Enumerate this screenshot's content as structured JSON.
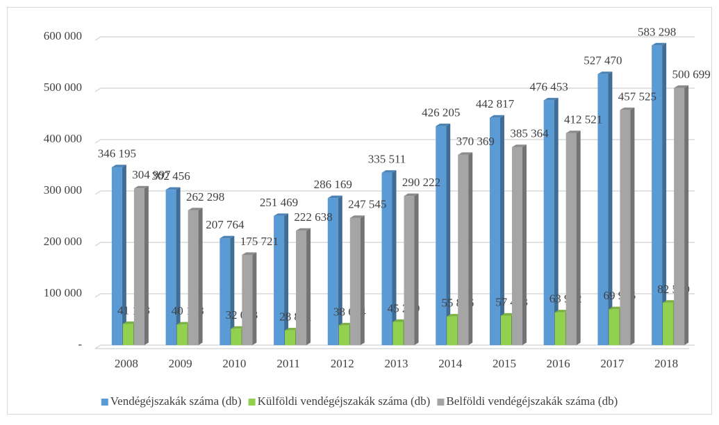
{
  "chart_data": {
    "type": "bar",
    "categories": [
      "2008",
      "2009",
      "2010",
      "2011",
      "2012",
      "2013",
      "2014",
      "2015",
      "2016",
      "2017",
      "2018"
    ],
    "series": [
      {
        "name": "Vendégéjszakák száma (db)",
        "color": "#5b9bd5",
        "values": [
          346195,
          302456,
          207764,
          251469,
          286169,
          335511,
          426205,
          442817,
          476453,
          527470,
          583298
        ],
        "value_labels": [
          "346 195",
          "302 456",
          "207 764",
          "251 469",
          "286 169",
          "335 511",
          "426 205",
          "442 817",
          "476 453",
          "527 470",
          "583 298"
        ]
      },
      {
        "name": "Külföldi vendégéjszakák száma (db)",
        "color": "#92d050",
        "values": [
          41198,
          40158,
          32043,
          28831,
          38624,
          45289,
          55836,
          57453,
          63932,
          69945,
          82599
        ],
        "value_labels": [
          "41 198",
          "40 158",
          "32 043",
          "28 831",
          "38 624",
          "45 289",
          "55 836",
          "57 453",
          "63 932",
          "69 945",
          "82 599"
        ]
      },
      {
        "name": "Belföldi vendégéjszakák száma (db)",
        "color": "#a5a5a5",
        "values": [
          304997,
          262298,
          175721,
          222638,
          247545,
          290222,
          370369,
          385364,
          412521,
          457525,
          500699
        ],
        "value_labels": [
          "304 997",
          "262 298",
          "175 721",
          "222 638",
          "247 545",
          "290 222",
          "370 369",
          "385 364",
          "412 521",
          "457 525",
          "500 699"
        ]
      }
    ],
    "ylim": [
      0,
      600000
    ],
    "yticks": [
      {
        "value": 0,
        "label": "-"
      },
      {
        "value": 100000,
        "label": "100 000"
      },
      {
        "value": 200000,
        "label": "200 000"
      },
      {
        "value": 300000,
        "label": "300 000"
      },
      {
        "value": 400000,
        "label": "400 000"
      },
      {
        "value": 500000,
        "label": "500 000"
      },
      {
        "value": 600000,
        "label": "600 000"
      }
    ],
    "grid": true,
    "legend": "bottom"
  }
}
